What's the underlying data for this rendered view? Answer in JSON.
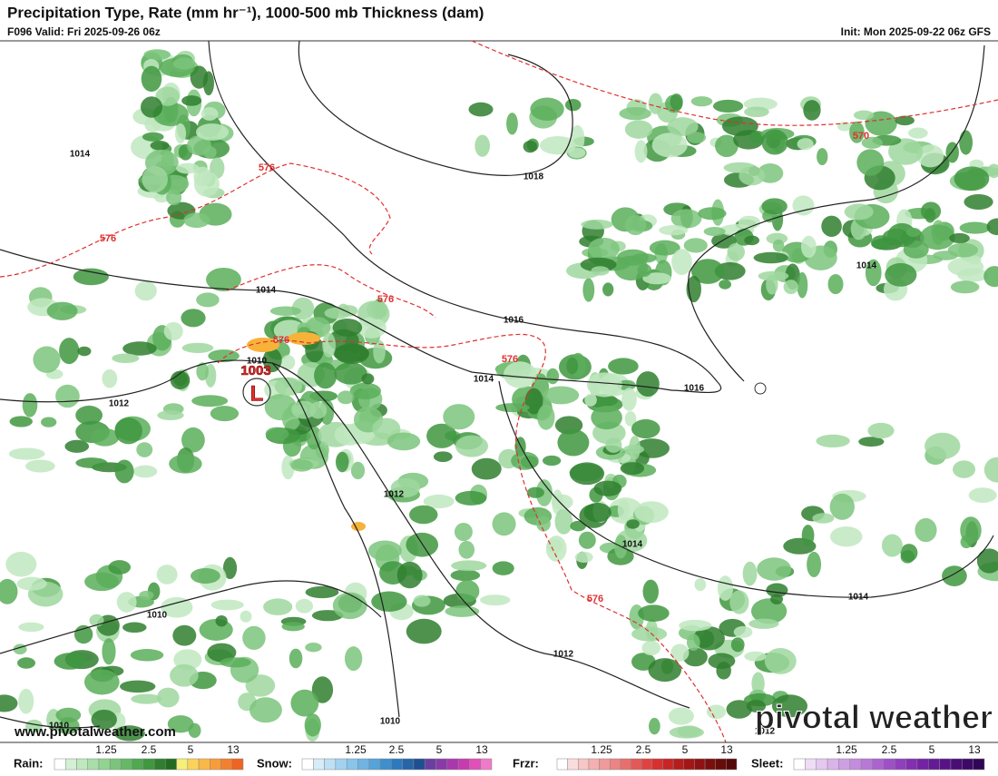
{
  "header": {
    "title": "Precipitation Type, Rate (mm hr⁻¹), 1000-500 mb Thickness (dam)",
    "valid": "F096 Valid: Fri 2025-09-26 06z",
    "init": "Init: Mon 2025-09-22 06z GFS"
  },
  "map": {
    "isobar_labels": [
      "1014",
      "1018",
      "1014",
      "1016",
      "1014",
      "1016",
      "1012",
      "1010",
      "1012",
      "1014",
      "1014",
      "1010",
      "1012",
      "1010",
      "1012",
      "1014",
      "1010"
    ],
    "thickness_labels": [
      "570",
      "576",
      "576",
      "576",
      "576",
      "576",
      "576"
    ],
    "low": {
      "pressure": "1003",
      "symbol": "L"
    },
    "website": "www.pivotalweather.com",
    "logo": "pivotal weather"
  },
  "legend": [
    {
      "name": "Rain:",
      "ticks": [
        "1.25",
        "2.5",
        "5",
        "13"
      ]
    },
    {
      "name": "Snow:",
      "ticks": [
        "1.25",
        "2.5",
        "5",
        "13"
      ]
    },
    {
      "name": "Frzr:",
      "ticks": [
        "1.25",
        "2.5",
        "5",
        "13"
      ]
    },
    {
      "name": "Sleet:",
      "ticks": [
        "1.25",
        "2.5",
        "5",
        "13"
      ]
    }
  ]
}
